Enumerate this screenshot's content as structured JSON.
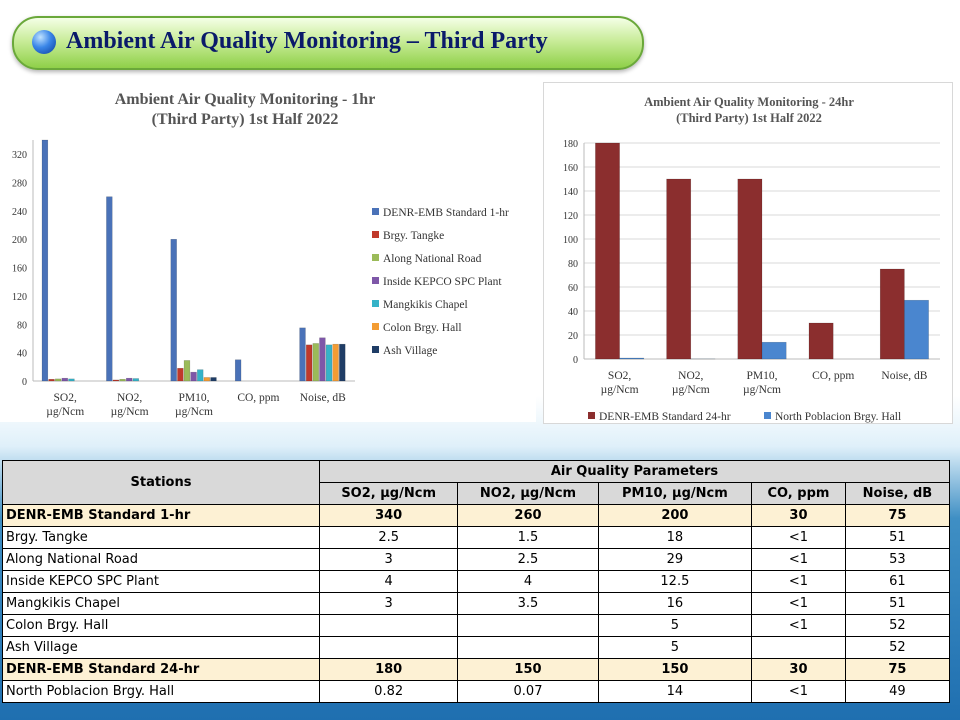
{
  "banner": {
    "title": "Ambient Air Quality Monitoring – Third Party"
  },
  "chart_data": [
    {
      "type": "bar",
      "title": "Ambient Air Quality Monitoring - 1hr\n(Third Party) 1st Half 2022",
      "categories": [
        "SO2,\nµg/Ncm",
        "NO2,\nµg/Ncm",
        "PM10,\nµg/Ncm",
        "CO, ppm",
        "Noise, dB"
      ],
      "ylim": [
        0,
        340
      ],
      "yticks": [
        0,
        40,
        80,
        120,
        160,
        200,
        240,
        280,
        320
      ],
      "legend": "right",
      "series": [
        {
          "name": "DENR-EMB Standard 1-hr",
          "color": "#4a72b8",
          "values": [
            340,
            260,
            200,
            30,
            75
          ]
        },
        {
          "name": "Brgy. Tangke",
          "color": "#c0392b",
          "values": [
            2.5,
            1.5,
            18,
            0,
            51
          ]
        },
        {
          "name": "Along National Road",
          "color": "#9bbb59",
          "values": [
            3,
            2.5,
            29,
            0,
            53
          ]
        },
        {
          "name": "Inside KEPCO SPC Plant",
          "color": "#7e57a8",
          "values": [
            4,
            4,
            12.5,
            0,
            61
          ]
        },
        {
          "name": "Mangkikis Chapel",
          "color": "#35b3c8",
          "values": [
            3,
            3.5,
            16,
            0,
            51
          ]
        },
        {
          "name": "Colon Brgy. Hall",
          "color": "#f39c33",
          "values": [
            0,
            0,
            5,
            0,
            52
          ]
        },
        {
          "name": "Ash Village",
          "color": "#1f3d66",
          "values": [
            0,
            0,
            5,
            0,
            52
          ]
        }
      ]
    },
    {
      "type": "bar",
      "title": "Ambient Air Quality Monitoring - 24hr\n(Third Party) 1st Half 2022",
      "categories": [
        "SO2,\nµg/Ncm",
        "NO2,\nµg/Ncm",
        "PM10,\nµg/Ncm",
        "CO, ppm",
        "Noise, dB"
      ],
      "ylim": [
        0,
        180
      ],
      "yticks": [
        0,
        20,
        40,
        60,
        80,
        100,
        120,
        140,
        160,
        180
      ],
      "legend": "bottom",
      "series": [
        {
          "name": "DENR-EMB Standard 24-hr",
          "color": "#8b2e2e",
          "values": [
            180,
            150,
            150,
            30,
            75
          ]
        },
        {
          "name": "North Poblacion Brgy. Hall",
          "color": "#4a86cf",
          "values": [
            0.82,
            0.07,
            14,
            0,
            49
          ]
        }
      ]
    }
  ],
  "table": {
    "stations_header": "Stations",
    "params_header": "Air Quality Parameters",
    "columns": [
      "SO2, µg/Ncm",
      "NO2, µg/Ncm",
      "PM10, µg/Ncm",
      "CO, ppm",
      "Noise, dB"
    ],
    "rows": [
      {
        "station": "DENR-EMB Standard 1-hr",
        "std": true,
        "values": [
          "340",
          "260",
          "200",
          "30",
          "75"
        ]
      },
      {
        "station": "Brgy. Tangke",
        "std": false,
        "values": [
          "2.5",
          "1.5",
          "18",
          "<1",
          "51"
        ]
      },
      {
        "station": "Along National Road",
        "std": false,
        "values": [
          "3",
          "2.5",
          "29",
          "<1",
          "53"
        ]
      },
      {
        "station": "Inside KEPCO SPC Plant",
        "std": false,
        "values": [
          "4",
          "4",
          "12.5",
          "<1",
          "61"
        ]
      },
      {
        "station": "Mangkikis Chapel",
        "std": false,
        "values": [
          "3",
          "3.5",
          "16",
          "<1",
          "51"
        ]
      },
      {
        "station": "Colon Brgy. Hall",
        "std": false,
        "values": [
          "",
          "",
          "5",
          "<1",
          "52"
        ]
      },
      {
        "station": "Ash Village",
        "std": false,
        "values": [
          "",
          "",
          "5",
          "",
          "52"
        ]
      },
      {
        "station": "DENR-EMB Standard 24-hr",
        "std": true,
        "values": [
          "180",
          "150",
          "150",
          "30",
          "75"
        ]
      },
      {
        "station": "North Poblacion Brgy. Hall",
        "std": false,
        "values": [
          "0.82",
          "0.07",
          "14",
          "<1",
          "49"
        ]
      }
    ]
  }
}
